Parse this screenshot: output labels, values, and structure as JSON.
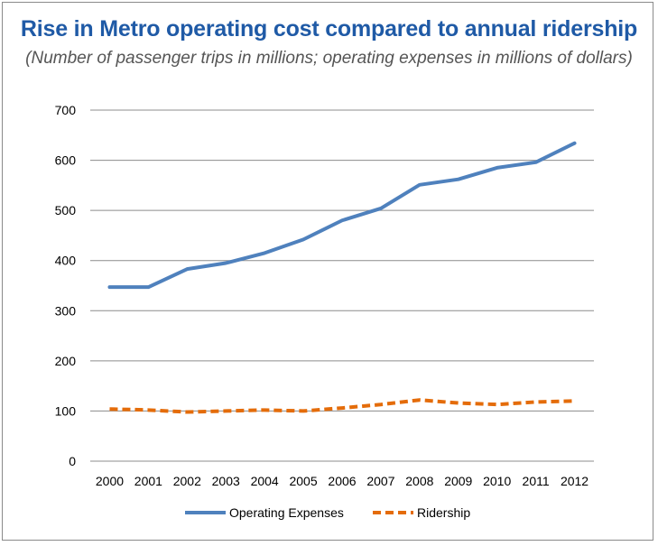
{
  "chart_data": {
    "type": "line",
    "title": "Rise in Metro operating cost compared to annual ridership",
    "subtitle": "(Number of passenger trips in millions; operating expenses in millions of dollars)",
    "xlabel": "",
    "ylabel": "",
    "categories": [
      "2000",
      "2001",
      "2002",
      "2003",
      "2004",
      "2005",
      "2006",
      "2007",
      "2008",
      "2009",
      "2010",
      "2011",
      "2012"
    ],
    "ylim": [
      0,
      700
    ],
    "yticks": [
      0,
      100,
      200,
      300,
      400,
      500,
      600,
      700
    ],
    "grid": true,
    "legend_position": "bottom",
    "series": [
      {
        "name": "Operating Expenses",
        "color": "#4f81bd",
        "style": "solid",
        "values": [
          347,
          347,
          383,
          395,
          415,
          442,
          480,
          504,
          551,
          562,
          585,
          596,
          634
        ]
      },
      {
        "name": "Ridership",
        "color": "#e46c0a",
        "style": "dashed",
        "values": [
          104,
          102,
          98,
          100,
          102,
          100,
          106,
          113,
          122,
          116,
          113,
          118,
          120
        ]
      }
    ]
  }
}
